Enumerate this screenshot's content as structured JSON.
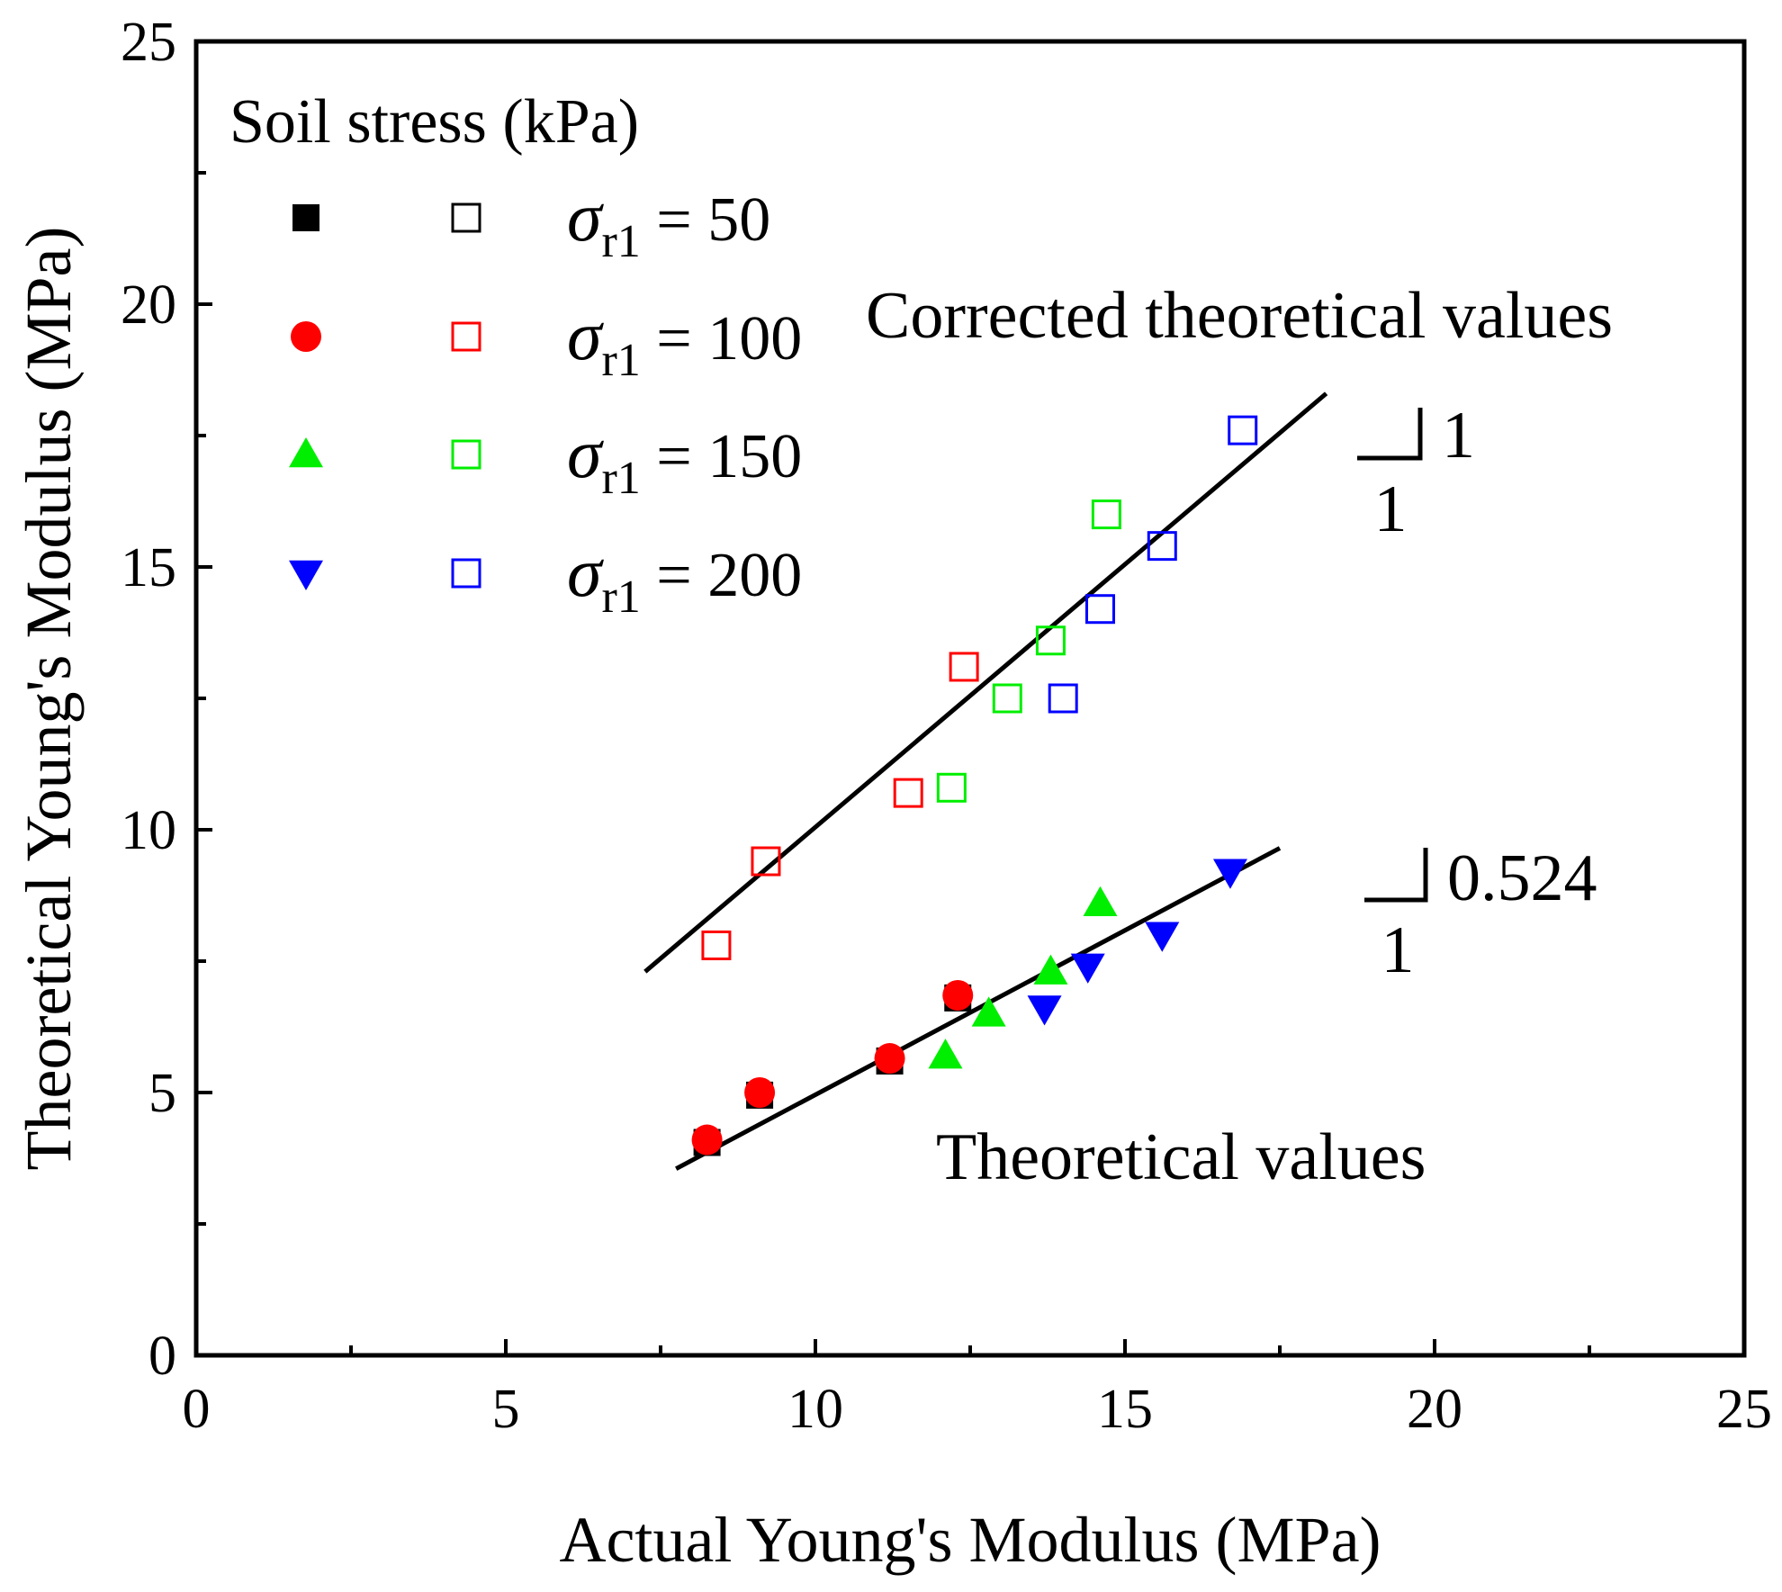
{
  "chart_data": {
    "type": "scatter",
    "xlabel": "Actual Young's Modulus (MPa)",
    "ylabel": "Theoretical Young's Modulus (MPa)",
    "xlim": [
      0,
      25
    ],
    "ylim": [
      0,
      25
    ],
    "xticks": [
      0,
      5,
      10,
      15,
      20,
      25
    ],
    "yticks": [
      0,
      5,
      10,
      15,
      20,
      25
    ],
    "xtick_labels": [
      "0",
      "5",
      "10",
      "15",
      "20",
      "25"
    ],
    "ytick_labels": [
      "0",
      "5",
      "10",
      "15",
      "20",
      "25"
    ],
    "grid": false,
    "legend": {
      "title": "Soil stress (kPa)",
      "position": "top-left",
      "sigma": "σ",
      "subscript": "r1",
      "entries": [
        {
          "value": " = 50",
          "color": "#000000",
          "filled_marker": "square"
        },
        {
          "value": " = 100",
          "color": "#ff0000",
          "filled_marker": "circle"
        },
        {
          "value": " = 150",
          "color": "#00ee00",
          "filled_marker": "triangle-up"
        },
        {
          "value": " = 200",
          "color": "#0000ff",
          "filled_marker": "triangle-down"
        }
      ]
    },
    "series": [
      {
        "name": "Theoretical σr1 = 50",
        "color": "#000000",
        "marker": "square-filled",
        "points": [
          [
            8.25,
            4.05
          ],
          [
            9.1,
            4.95
          ],
          [
            11.2,
            5.6
          ],
          [
            12.3,
            6.8
          ]
        ]
      },
      {
        "name": "Theoretical σr1 = 100",
        "color": "#ff0000",
        "marker": "circle-filled",
        "points": [
          [
            8.25,
            4.1
          ],
          [
            9.1,
            5.0
          ],
          [
            11.2,
            5.65
          ],
          [
            12.3,
            6.85
          ]
        ]
      },
      {
        "name": "Theoretical σr1 = 150",
        "color": "#00ee00",
        "marker": "triangle-up-filled",
        "points": [
          [
            12.1,
            5.7
          ],
          [
            12.8,
            6.5
          ],
          [
            13.8,
            7.3
          ],
          [
            14.6,
            8.6
          ]
        ]
      },
      {
        "name": "Theoretical σr1 = 200",
        "color": "#0000ff",
        "marker": "triangle-down-filled",
        "points": [
          [
            13.7,
            6.6
          ],
          [
            14.4,
            7.4
          ],
          [
            15.6,
            8.0
          ],
          [
            16.7,
            9.2
          ]
        ]
      },
      {
        "name": "Corrected σr1 = 100",
        "color": "#ff0000",
        "marker": "square-open",
        "points": [
          [
            8.4,
            7.8
          ],
          [
            9.2,
            9.4
          ],
          [
            11.5,
            10.7
          ],
          [
            12.4,
            13.1
          ]
        ]
      },
      {
        "name": "Corrected σr1 = 150",
        "color": "#00ee00",
        "marker": "square-open",
        "points": [
          [
            12.2,
            10.8
          ],
          [
            13.1,
            12.5
          ],
          [
            13.8,
            13.6
          ],
          [
            14.7,
            16.0
          ]
        ]
      },
      {
        "name": "Corrected σr1 = 200",
        "color": "#0000ff",
        "marker": "square-open",
        "points": [
          [
            14.0,
            12.5
          ],
          [
            14.6,
            14.2
          ],
          [
            15.6,
            15.4
          ],
          [
            16.9,
            17.6
          ]
        ]
      }
    ],
    "fit_lines": [
      {
        "name": "Corrected fit",
        "slope": 1.0,
        "from": [
          7.25,
          7.3
        ],
        "to": [
          18.25,
          18.3
        ],
        "color": "#000000"
      },
      {
        "name": "Theoretical fit",
        "slope": 0.524,
        "from": [
          7.75,
          3.55
        ],
        "to": [
          17.5,
          9.65
        ],
        "color": "#000000"
      }
    ],
    "annotations": {
      "corrected_label": "Corrected theoretical values",
      "theoretical_label": "Theoretical values",
      "slope_upper_rise": "1",
      "slope_upper_run": "1",
      "slope_lower_rise": "0.524",
      "slope_lower_run": "1"
    }
  }
}
